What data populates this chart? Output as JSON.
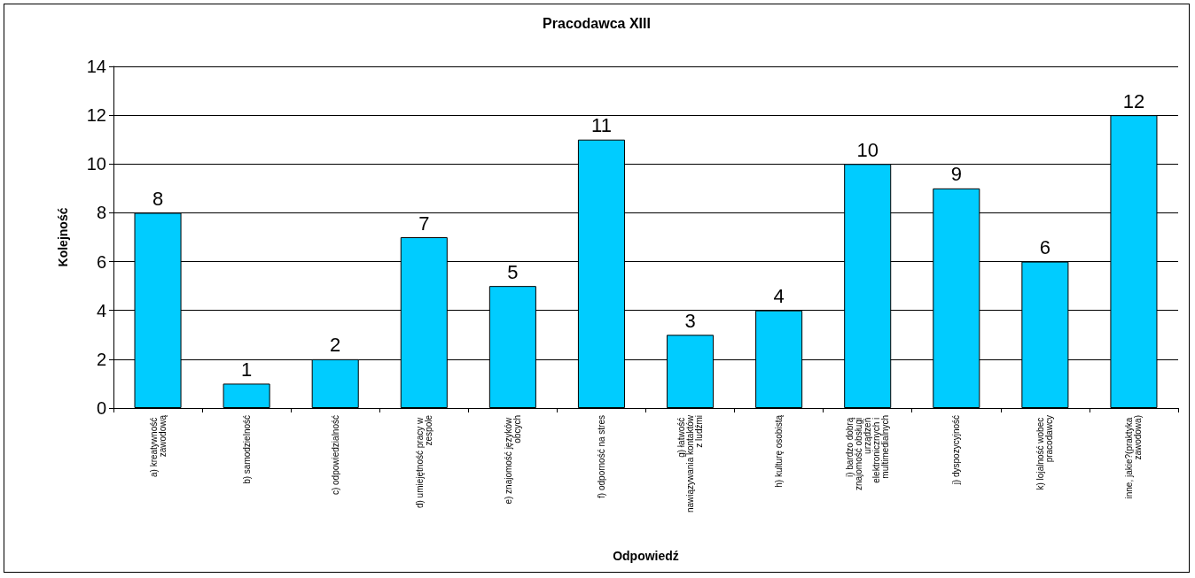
{
  "chart_data": {
    "type": "bar",
    "title": "Pracodawca XIII",
    "xlabel": "Odpowiedź",
    "ylabel": "Kolejność",
    "categories": [
      "a) kreatywność zawodową",
      "b) samodzielność",
      "c) odpowiedzialność",
      "d) umiejętność pracy w zespole",
      "e) znajomość języków obcych",
      "f) odporność na stres",
      "g) łatwość nawiązywania kontaktów z ludźmi",
      "h) kulturę osobistą",
      "i) bardzo dobrą znajomość obsługi urządzeń elektronicznych i multimedialnych",
      "j) dyspozycyjność",
      "k) lojalność wobec pracodawcy",
      "inne, jakie?(praktyka zawodowa)"
    ],
    "values": [
      8,
      1,
      2,
      7,
      5,
      11,
      3,
      4,
      10,
      9,
      6,
      12
    ],
    "color": "#00ccff",
    "ylim": [
      0,
      14
    ],
    "yticks": [
      0,
      2,
      4,
      6,
      8,
      10,
      12,
      14
    ],
    "grid": "y",
    "data_labels": true
  }
}
